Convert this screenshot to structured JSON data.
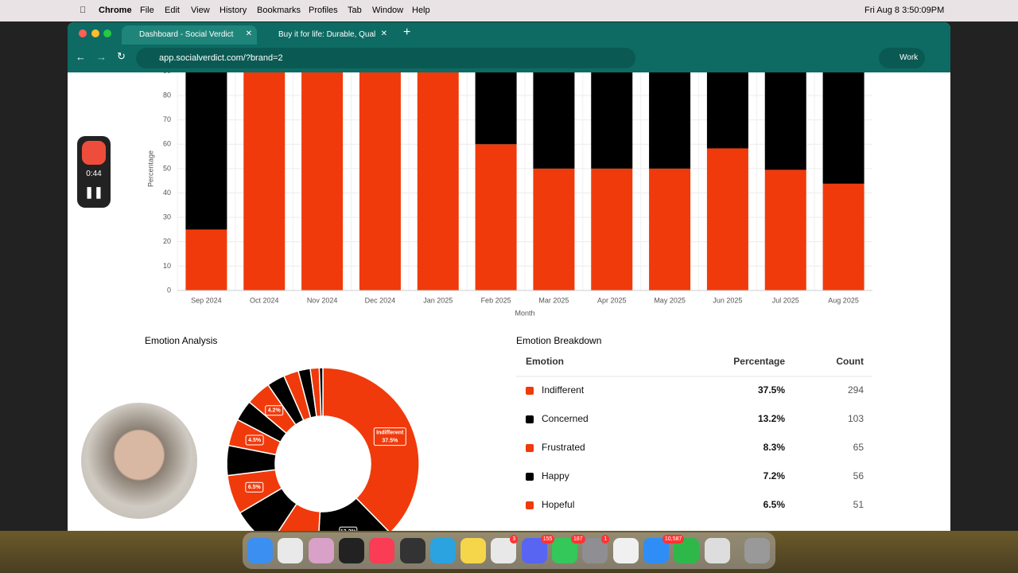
{
  "menu_bar": {
    "app": "Chrome",
    "menus": [
      "File",
      "Edit",
      "View",
      "History",
      "Bookmarks",
      "Profiles",
      "Tab",
      "Window",
      "Help"
    ],
    "clock": "Fri Aug 8  3:50:09PM"
  },
  "tabs": [
    "Dashboard - Social Verdict",
    "Buy it for life: Durable, Quality"
  ],
  "address": "app.socialverdict.com/?brand=2",
  "profile": "Work",
  "recorder": {
    "time": "0:44"
  },
  "chart_data": [
    {
      "type": "bar",
      "stacked": true,
      "x_label": "Month",
      "y_label": "Percentage",
      "categories": [
        "Sep 2024",
        "Oct 2024",
        "Nov 2024",
        "Dec 2024",
        "Jan 2025",
        "Feb 2025",
        "Mar 2025",
        "Apr 2025",
        "May 2025",
        "Jun 2025",
        "Jul 2025",
        "Aug 2025"
      ],
      "series": [
        {
          "color": "#f03a0b",
          "values": [
            25,
            100,
            100,
            100,
            100,
            60,
            50,
            50,
            50,
            58.3,
            49.5,
            43.8
          ]
        },
        {
          "color": "#000000",
          "values": [
            75,
            0,
            0,
            0,
            0,
            40,
            50,
            50,
            50,
            41.7,
            50.5,
            56.2
          ]
        }
      ],
      "ylim": [
        0,
        100
      ],
      "yticks": [
        0,
        10,
        20,
        30,
        40,
        50,
        60,
        70,
        80,
        90
      ],
      "grid": true
    },
    {
      "type": "donut",
      "title": "Emotion Analysis",
      "categories": [
        "Indifferent",
        null,
        null,
        null,
        null,
        null,
        null,
        null,
        null,
        null,
        null,
        null,
        null,
        null
      ],
      "values": [
        37.5,
        13.2,
        8.3,
        7.2,
        6.5,
        5.0,
        4.5,
        3.5,
        4.2,
        3.0,
        2.5,
        2.0,
        1.5,
        0.6
      ],
      "value_labels": [
        "37.5%",
        "13.2%",
        null,
        null,
        "6.5%",
        null,
        "4.5%",
        null,
        "4.2%",
        null,
        null,
        null,
        null,
        null
      ],
      "colors": [
        "#f03a0b",
        "#000000"
      ]
    }
  ],
  "emotion_breakdown": {
    "title": "Emotion Breakdown",
    "headers": [
      "Emotion",
      "Percentage",
      "Count"
    ],
    "rows": [
      {
        "color": "#f03a0b",
        "cells": [
          "Indifferent",
          "37.5%",
          "294"
        ]
      },
      {
        "color": "#000000",
        "cells": [
          "Concerned",
          "13.2%",
          "103"
        ]
      },
      {
        "color": "#f03a0b",
        "cells": [
          "Frustrated",
          "8.3%",
          "65"
        ]
      },
      {
        "color": "#000000",
        "cells": [
          "Happy",
          "7.2%",
          "56"
        ]
      },
      {
        "color": "#f03a0b",
        "cells": [
          "Hopeful",
          "6.5%",
          "51"
        ]
      }
    ]
  },
  "dock": {
    "badges": [
      "3",
      "155",
      "187",
      "1",
      "10,587"
    ]
  }
}
